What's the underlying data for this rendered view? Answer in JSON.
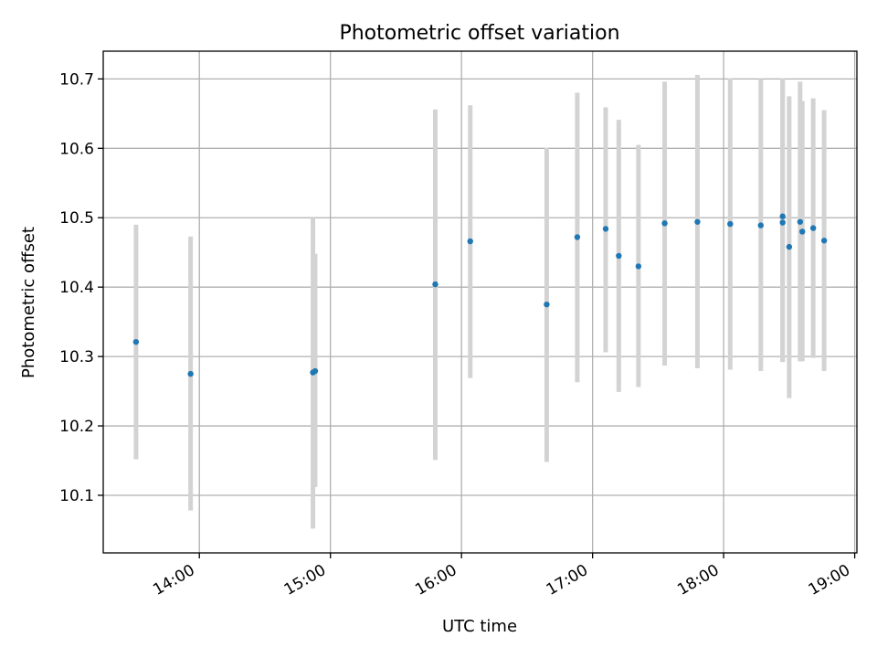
{
  "chart_data": {
    "type": "scatter",
    "title": "Photometric offset variation",
    "xlabel": "UTC time",
    "ylabel": "Photometric offset",
    "xlim": [
      "13:16",
      "19:01"
    ],
    "ylim": [
      10.017,
      10.74
    ],
    "grid": true,
    "x_ticks": [
      "14:00",
      "15:00",
      "16:00",
      "17:00",
      "18:00",
      "19:00"
    ],
    "y_ticks": [
      10.1,
      10.2,
      10.3,
      10.4,
      10.5,
      10.6,
      10.7
    ],
    "y_tick_labels": [
      "10.1",
      "10.2",
      "10.3",
      "10.4",
      "10.5",
      "10.6",
      "10.7"
    ],
    "colors": {
      "point": "#1f77b4",
      "errorbar": "#d3d3d3",
      "grid": "#b0b0b0"
    },
    "points": [
      {
        "time": "13:31",
        "y": 10.321,
        "ylow": 10.152,
        "yhigh": 10.49
      },
      {
        "time": "13:56",
        "y": 10.275,
        "ylow": 10.078,
        "yhigh": 10.473
      },
      {
        "time": "14:52",
        "y": 10.277,
        "ylow": 10.052,
        "yhigh": 10.5
      },
      {
        "time": "14:53",
        "y": 10.279,
        "ylow": 10.112,
        "yhigh": 10.448
      },
      {
        "time": "15:48",
        "y": 10.404,
        "ylow": 10.151,
        "yhigh": 10.656
      },
      {
        "time": "16:04",
        "y": 10.466,
        "ylow": 10.269,
        "yhigh": 10.662
      },
      {
        "time": "16:39",
        "y": 10.375,
        "ylow": 10.148,
        "yhigh": 10.601
      },
      {
        "time": "16:53",
        "y": 10.472,
        "ylow": 10.263,
        "yhigh": 10.68
      },
      {
        "time": "17:06",
        "y": 10.484,
        "ylow": 10.306,
        "yhigh": 10.659
      },
      {
        "time": "17:12",
        "y": 10.445,
        "ylow": 10.249,
        "yhigh": 10.641
      },
      {
        "time": "17:21",
        "y": 10.43,
        "ylow": 10.256,
        "yhigh": 10.605
      },
      {
        "time": "17:33",
        "y": 10.492,
        "ylow": 10.287,
        "yhigh": 10.696
      },
      {
        "time": "17:48",
        "y": 10.494,
        "ylow": 10.283,
        "yhigh": 10.706
      },
      {
        "time": "18:03",
        "y": 10.491,
        "ylow": 10.281,
        "yhigh": 10.701
      },
      {
        "time": "18:17",
        "y": 10.489,
        "ylow": 10.279,
        "yhigh": 10.7
      },
      {
        "time": "18:27",
        "y": 10.493,
        "ylow": 10.292,
        "yhigh": 10.701
      },
      {
        "time": "18:27",
        "y": 10.502,
        "ylow": 10.292,
        "yhigh": 10.701
      },
      {
        "time": "18:30",
        "y": 10.458,
        "ylow": 10.24,
        "yhigh": 10.675
      },
      {
        "time": "18:35",
        "y": 10.494,
        "ylow": 10.293,
        "yhigh": 10.696
      },
      {
        "time": "18:36",
        "y": 10.48,
        "ylow": 10.293,
        "yhigh": 10.668
      },
      {
        "time": "18:41",
        "y": 10.485,
        "ylow": 10.298,
        "yhigh": 10.672
      },
      {
        "time": "18:46",
        "y": 10.467,
        "ylow": 10.279,
        "yhigh": 10.655
      }
    ]
  }
}
